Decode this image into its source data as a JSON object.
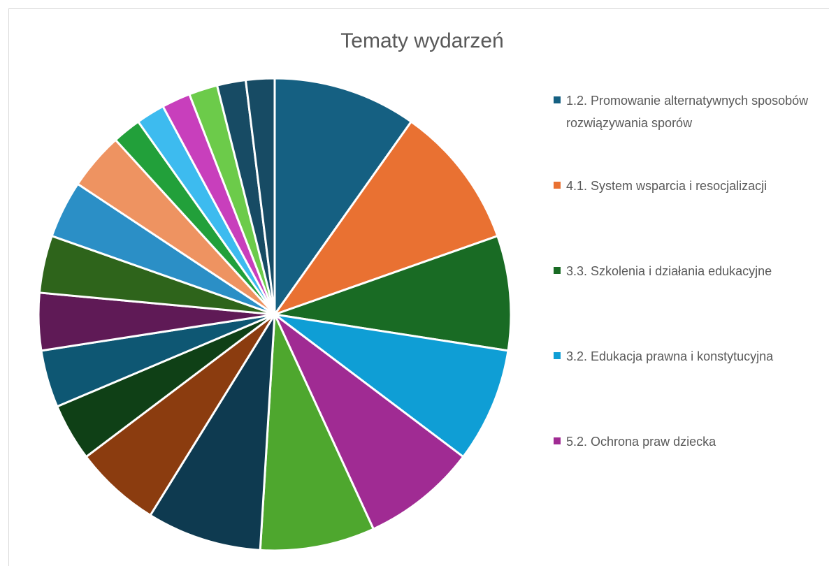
{
  "chart_data": {
    "type": "pie",
    "title": "Tematy wydarzeń",
    "categories": [
      "1.2. Promowanie alternatywnych sposobów rozwiązywania sporów",
      "4.1. System wsparcia i resocjalizacji",
      "3.3. Szkolenia i działania edukacyjne",
      "3.2. Edukacja prawna i konstytucyjna",
      "5.2. Ochrona praw dziecka",
      null,
      null,
      null,
      null,
      null,
      null,
      null,
      null,
      null,
      null,
      null,
      null,
      null,
      null,
      null
    ],
    "values": [
      5,
      5,
      4,
      4,
      4,
      4,
      4,
      3,
      2,
      2,
      2,
      2,
      2,
      2,
      1,
      1,
      1,
      1,
      1,
      1
    ],
    "colors": [
      "#156082",
      "#e97132",
      "#196b24",
      "#0f9ed5",
      "#a02b93",
      "#4ea72e",
      "#0e3a50",
      "#8b3c0f",
      "#0f4016",
      "#0e5773",
      "#5f1a56",
      "#2e641b",
      "#2b8fc6",
      "#ee9361",
      "#22a03a",
      "#3dbbef",
      "#c83fbc",
      "#6ccb4a",
      "#174b64",
      "#174b64"
    ],
    "legend": "right"
  }
}
